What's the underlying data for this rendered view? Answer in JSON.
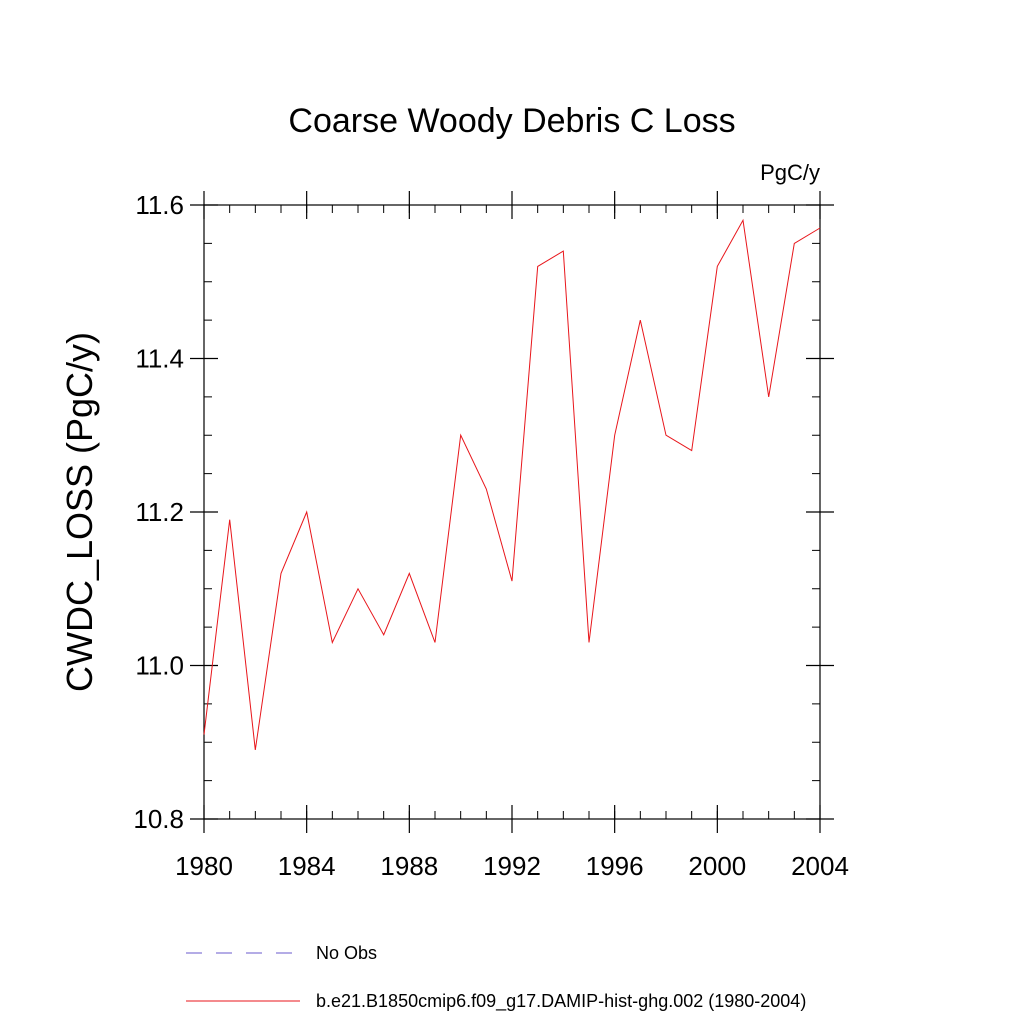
{
  "chart_data": {
    "type": "line",
    "title": "Coarse Woody Debris C Loss",
    "units_label": "PgC/y",
    "ylabel": "CWDC_LOSS  (PgC/y)",
    "xlabel": "",
    "xlim": [
      1980,
      2004
    ],
    "ylim": [
      10.8,
      11.6
    ],
    "x_ticks": [
      1980,
      1984,
      1988,
      1992,
      1996,
      2000,
      2004
    ],
    "x_tick_labels": [
      "1980",
      "1984",
      "1988",
      "1992",
      "1996",
      "2000",
      "2004"
    ],
    "y_ticks": [
      10.8,
      11.0,
      11.2,
      11.4,
      11.6
    ],
    "y_tick_labels": [
      "10.8",
      "11.0",
      "11.2",
      "11.4",
      "11.6"
    ],
    "y_minor_step": 0.05,
    "x_minor_step": 1,
    "grid": false,
    "legend_position": "bottom",
    "series": [
      {
        "name": "b.e21.B1850cmip6.f09_g17.DAMIP-hist-ghg.002 (1980-2004)",
        "color": "#e8161b",
        "style": "solid",
        "x": [
          1980,
          1981,
          1982,
          1983,
          1984,
          1985,
          1986,
          1987,
          1988,
          1989,
          1990,
          1991,
          1992,
          1993,
          1994,
          1995,
          1996,
          1997,
          1998,
          1999,
          2000,
          2001,
          2002,
          2003,
          2004
        ],
        "values": [
          10.91,
          11.19,
          10.89,
          11.12,
          11.2,
          11.03,
          11.1,
          11.04,
          11.12,
          11.03,
          11.3,
          11.23,
          11.11,
          11.52,
          11.54,
          11.03,
          11.3,
          11.45,
          11.3,
          11.28,
          11.52,
          11.58,
          11.35,
          11.55,
          11.57
        ]
      }
    ],
    "legend": [
      {
        "label": "No Obs",
        "color": "#6a5acd",
        "style": "dashed"
      },
      {
        "label": "b.e21.B1850cmip6.f09_g17.DAMIP-hist-ghg.002 (1980-2004)",
        "color": "#e8161b",
        "style": "solid"
      }
    ]
  }
}
